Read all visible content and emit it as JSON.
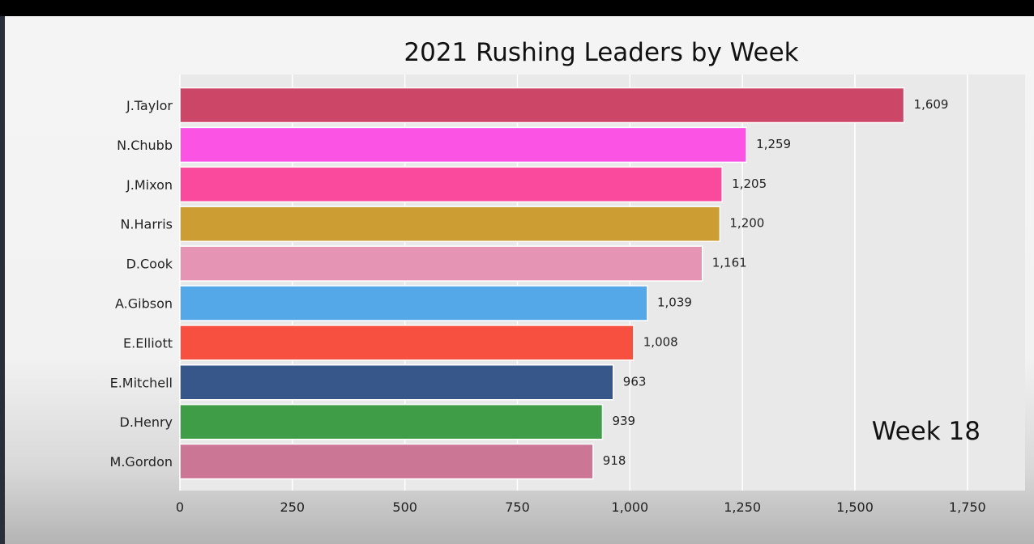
{
  "chart_data": {
    "type": "bar",
    "orientation": "horizontal",
    "title": "2021 Rushing Leaders by Week",
    "annotation": "Week 18",
    "categories": [
      "J.Taylor",
      "N.Chubb",
      "J.Mixon",
      "N.Harris",
      "D.Cook",
      "A.Gibson",
      "E.Elliott",
      "E.Mitchell",
      "D.Henry",
      "M.Gordon"
    ],
    "values": [
      1609,
      1259,
      1205,
      1200,
      1161,
      1039,
      1008,
      963,
      939,
      918
    ],
    "value_labels": [
      "1,609",
      "1,259",
      "1,205",
      "1,200",
      "1,161",
      "1,039",
      "1,008",
      "963",
      "939",
      "918"
    ],
    "colors": [
      "#cc4668",
      "#fb54e4",
      "#f94a9d",
      "#cc9d33",
      "#e694b4",
      "#54a8e8",
      "#f85040",
      "#37578a",
      "#3f9d48",
      "#cc7696"
    ],
    "xticks": [
      0,
      250,
      500,
      750,
      1000,
      1250,
      1500,
      1750
    ],
    "xtick_labels": [
      "0",
      "250",
      "500",
      "750",
      "1,000",
      "1,250",
      "1,500",
      "1,750"
    ],
    "xlim": [
      0,
      1875
    ],
    "grid": true,
    "annotation_position": "bottom-right"
  }
}
